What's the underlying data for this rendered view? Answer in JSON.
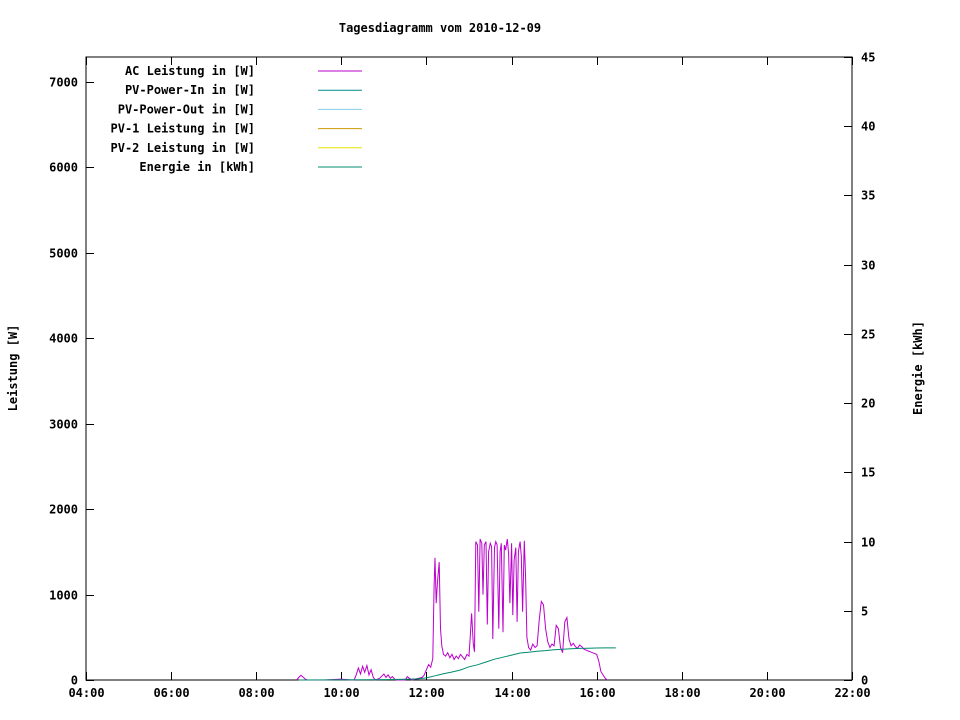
{
  "page": {
    "background": "#ffffff"
  },
  "chart_data": {
    "type": "line",
    "title": "Tagesdiagramm vom 2010-12-09",
    "xlabel": "",
    "ylabel": "Leistung [W]",
    "y2label": "Energie [kWh]",
    "grid": false,
    "legend_position": "top-left",
    "x_range_hours": [
      4,
      22
    ],
    "x_tick_hours": [
      4,
      6,
      8,
      10,
      12,
      14,
      16,
      18,
      20,
      22
    ],
    "x_ticks": [
      "04:00",
      "06:00",
      "08:00",
      "10:00",
      "12:00",
      "14:00",
      "16:00",
      "18:00",
      "20:00",
      "22:00"
    ],
    "y_range": [
      0,
      7292
    ],
    "y_ticks": [
      0,
      1000,
      2000,
      3000,
      4000,
      5000,
      6000,
      7000
    ],
    "y2_range": [
      0,
      45
    ],
    "y2_ticks": [
      0,
      5,
      10,
      15,
      20,
      25,
      30,
      35,
      40,
      45
    ],
    "axis_color": "#000000",
    "series": [
      {
        "name": "AC Leistung in [W]",
        "axis": "y1",
        "color": "#bb00cc",
        "points": [
          [
            8.95,
            0
          ],
          [
            9.0,
            30
          ],
          [
            9.05,
            55
          ],
          [
            9.1,
            35
          ],
          [
            9.15,
            10
          ],
          [
            9.2,
            0
          ],
          [
            9.6,
            0
          ],
          [
            10.0,
            10
          ],
          [
            10.25,
            0
          ],
          [
            10.3,
            0
          ],
          [
            10.35,
            60
          ],
          [
            10.4,
            140
          ],
          [
            10.45,
            70
          ],
          [
            10.5,
            160
          ],
          [
            10.55,
            90
          ],
          [
            10.6,
            170
          ],
          [
            10.65,
            60
          ],
          [
            10.7,
            120
          ],
          [
            10.75,
            30
          ],
          [
            10.8,
            0
          ],
          [
            10.9,
            20
          ],
          [
            11.0,
            70
          ],
          [
            11.05,
            30
          ],
          [
            11.1,
            60
          ],
          [
            11.15,
            20
          ],
          [
            11.2,
            40
          ],
          [
            11.25,
            10
          ],
          [
            11.3,
            0
          ],
          [
            11.5,
            0
          ],
          [
            11.55,
            40
          ],
          [
            11.6,
            20
          ],
          [
            11.65,
            0
          ],
          [
            11.9,
            30
          ],
          [
            11.95,
            60
          ],
          [
            12.0,
            120
          ],
          [
            12.05,
            180
          ],
          [
            12.1,
            150
          ],
          [
            12.15,
            250
          ],
          [
            12.18,
            1100
          ],
          [
            12.2,
            1430
          ],
          [
            12.23,
            900
          ],
          [
            12.26,
            1150
          ],
          [
            12.3,
            1380
          ],
          [
            12.33,
            600
          ],
          [
            12.36,
            400
          ],
          [
            12.4,
            300
          ],
          [
            12.45,
            280
          ],
          [
            12.5,
            320
          ],
          [
            12.55,
            260
          ],
          [
            12.6,
            300
          ],
          [
            12.65,
            240
          ],
          [
            12.7,
            280
          ],
          [
            12.75,
            250
          ],
          [
            12.8,
            300
          ],
          [
            12.85,
            270
          ],
          [
            12.9,
            240
          ],
          [
            12.95,
            300
          ],
          [
            13.0,
            280
          ],
          [
            13.03,
            520
          ],
          [
            13.06,
            780
          ],
          [
            13.1,
            420
          ],
          [
            13.13,
            330
          ],
          [
            13.16,
            1620
          ],
          [
            13.2,
            1580
          ],
          [
            13.23,
            800
          ],
          [
            13.26,
            1650
          ],
          [
            13.3,
            1600
          ],
          [
            13.33,
            1000
          ],
          [
            13.36,
            1580
          ],
          [
            13.4,
            1620
          ],
          [
            13.43,
            650
          ],
          [
            13.46,
            1500
          ],
          [
            13.5,
            1600
          ],
          [
            13.53,
            1560
          ],
          [
            13.56,
            480
          ],
          [
            13.6,
            1550
          ],
          [
            13.63,
            1620
          ],
          [
            13.66,
            1580
          ],
          [
            13.7,
            600
          ],
          [
            13.73,
            1500
          ],
          [
            13.76,
            1600
          ],
          [
            13.8,
            560
          ],
          [
            13.83,
            1580
          ],
          [
            13.86,
            1520
          ],
          [
            13.9,
            1650
          ],
          [
            13.93,
            1480
          ],
          [
            13.96,
            900
          ],
          [
            14.0,
            1600
          ],
          [
            14.03,
            760
          ],
          [
            14.06,
            1400
          ],
          [
            14.1,
            1550
          ],
          [
            14.13,
            680
          ],
          [
            14.16,
            1500
          ],
          [
            14.2,
            1620
          ],
          [
            14.23,
            1450
          ],
          [
            14.26,
            800
          ],
          [
            14.3,
            1630
          ],
          [
            14.33,
            1200
          ],
          [
            14.36,
            500
          ],
          [
            14.4,
            380
          ],
          [
            14.45,
            350
          ],
          [
            14.5,
            420
          ],
          [
            14.55,
            380
          ],
          [
            14.6,
            400
          ],
          [
            14.65,
            700
          ],
          [
            14.7,
            920
          ],
          [
            14.75,
            880
          ],
          [
            14.8,
            600
          ],
          [
            14.85,
            450
          ],
          [
            14.9,
            380
          ],
          [
            14.95,
            420
          ],
          [
            15.0,
            400
          ],
          [
            15.05,
            640
          ],
          [
            15.1,
            600
          ],
          [
            15.15,
            380
          ],
          [
            15.2,
            320
          ],
          [
            15.25,
            680
          ],
          [
            15.3,
            730
          ],
          [
            15.35,
            480
          ],
          [
            15.4,
            400
          ],
          [
            15.45,
            430
          ],
          [
            15.5,
            390
          ],
          [
            15.55,
            370
          ],
          [
            15.6,
            410
          ],
          [
            15.65,
            390
          ],
          [
            15.7,
            360
          ],
          [
            15.75,
            350
          ],
          [
            15.8,
            340
          ],
          [
            15.85,
            330
          ],
          [
            15.9,
            320
          ],
          [
            16.0,
            300
          ],
          [
            16.05,
            220
          ],
          [
            16.1,
            100
          ],
          [
            16.15,
            60
          ],
          [
            16.2,
            20
          ],
          [
            16.25,
            0
          ]
        ]
      },
      {
        "name": "PV-Power-In in [W]",
        "axis": "y1",
        "color": "#008b8b",
        "points": []
      },
      {
        "name": "PV-Power-Out in [W]",
        "axis": "y1",
        "color": "#87ceeb",
        "points": []
      },
      {
        "name": "PV-1 Leistung in [W]",
        "axis": "y1",
        "color": "#cc9900",
        "points": []
      },
      {
        "name": "PV-2 Leistung in [W]",
        "axis": "y1",
        "color": "#e3e300",
        "points": []
      },
      {
        "name": "Energie in [kWh]",
        "axis": "y2",
        "color": "#008b6e",
        "points": [
          [
            9.0,
            0
          ],
          [
            10.5,
            0.02
          ],
          [
            11.0,
            0.03
          ],
          [
            11.5,
            0.05
          ],
          [
            11.8,
            0.08
          ],
          [
            12.0,
            0.15
          ],
          [
            12.2,
            0.3
          ],
          [
            12.4,
            0.45
          ],
          [
            12.6,
            0.58
          ],
          [
            12.8,
            0.72
          ],
          [
            13.0,
            0.95
          ],
          [
            13.2,
            1.1
          ],
          [
            13.4,
            1.3
          ],
          [
            13.6,
            1.5
          ],
          [
            13.8,
            1.65
          ],
          [
            14.0,
            1.8
          ],
          [
            14.2,
            1.95
          ],
          [
            14.4,
            2.0
          ],
          [
            14.6,
            2.08
          ],
          [
            14.8,
            2.12
          ],
          [
            15.0,
            2.18
          ],
          [
            15.2,
            2.22
          ],
          [
            15.4,
            2.26
          ],
          [
            15.6,
            2.28
          ],
          [
            15.8,
            2.3
          ],
          [
            16.0,
            2.31
          ],
          [
            16.2,
            2.32
          ],
          [
            16.45,
            2.32
          ]
        ]
      }
    ]
  }
}
